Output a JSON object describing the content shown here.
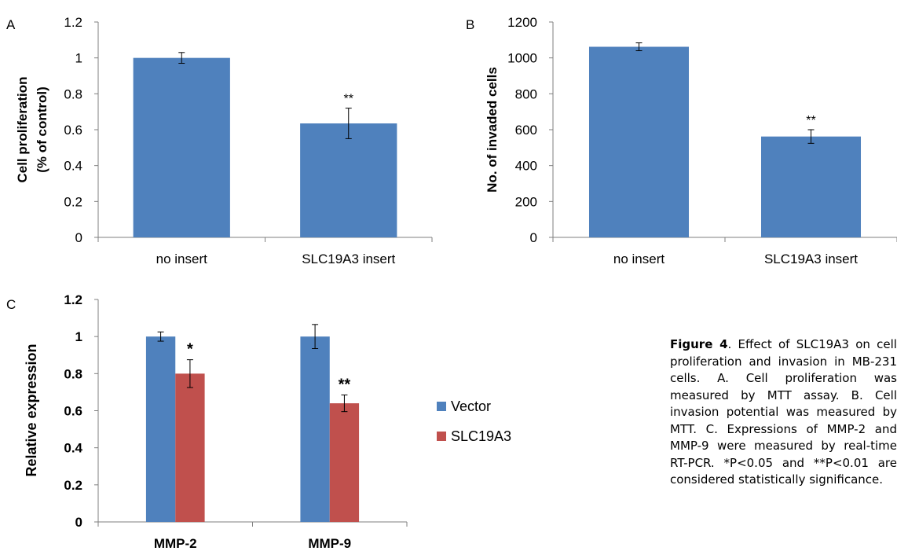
{
  "chart_data": [
    {
      "type": "bar",
      "panel_letter": "A",
      "categories": [
        "no insert",
        "SLC19A3 insert"
      ],
      "values": [
        1.0,
        0.635
      ],
      "errors": [
        0.03,
        0.085
      ],
      "annotations": [
        "",
        "**"
      ],
      "ylabel_lines": [
        "Cell proliferation",
        "(% of control)"
      ],
      "ylim": [
        0,
        1.2
      ],
      "yticks": [
        "0",
        "0.2",
        "0.4",
        "0.6",
        "0.8",
        "1",
        "1.2"
      ],
      "bar_color": "#4F81BD",
      "bold_labels": false
    },
    {
      "type": "bar",
      "panel_letter": "B",
      "categories": [
        "no insert",
        "SLC19A3 insert"
      ],
      "values": [
        1062,
        562
      ],
      "errors": [
        22,
        38
      ],
      "annotations": [
        "",
        "**"
      ],
      "ylabel_lines": [
        "No. of invaded cells"
      ],
      "ylim": [
        0,
        1200
      ],
      "yticks": [
        "0",
        "200",
        "400",
        "600",
        "800",
        "1000",
        "1200"
      ],
      "bar_color": "#4F81BD",
      "bold_labels": false
    },
    {
      "type": "bar",
      "panel_letter": "C",
      "categories": [
        "MMP-2",
        "MMP-9"
      ],
      "series": [
        {
          "name": "Vector",
          "values": [
            1.0,
            1.0
          ],
          "errors": [
            0.025,
            0.065
          ],
          "annotations": [
            "",
            ""
          ],
          "color": "#4F81BD"
        },
        {
          "name": "SLC19A3",
          "values": [
            0.8,
            0.64
          ],
          "errors": [
            0.075,
            0.045
          ],
          "annotations": [
            "*",
            "**"
          ],
          "color": "#C0504D"
        }
      ],
      "ylabel_lines": [
        "Relative expression"
      ],
      "ylim": [
        0,
        1.2
      ],
      "yticks": [
        "0",
        "0.2",
        "0.4",
        "0.6",
        "0.8",
        "1",
        "1.2"
      ],
      "legend_position": "right",
      "bold_labels": true
    }
  ],
  "caption": {
    "label": "Figure 4",
    "text": ". Effect of SLC19A3 on cell proliferation and invasion in MB-231 cells. A. Cell proliferation was measured by MTT assay. B. Cell invasion potential was measured by MTT. C. Expressions of MMP-2 and MMP-9 were measured by real-time RT-PCR. *P<0.05 and **P<0.01 are considered statistically significance."
  }
}
